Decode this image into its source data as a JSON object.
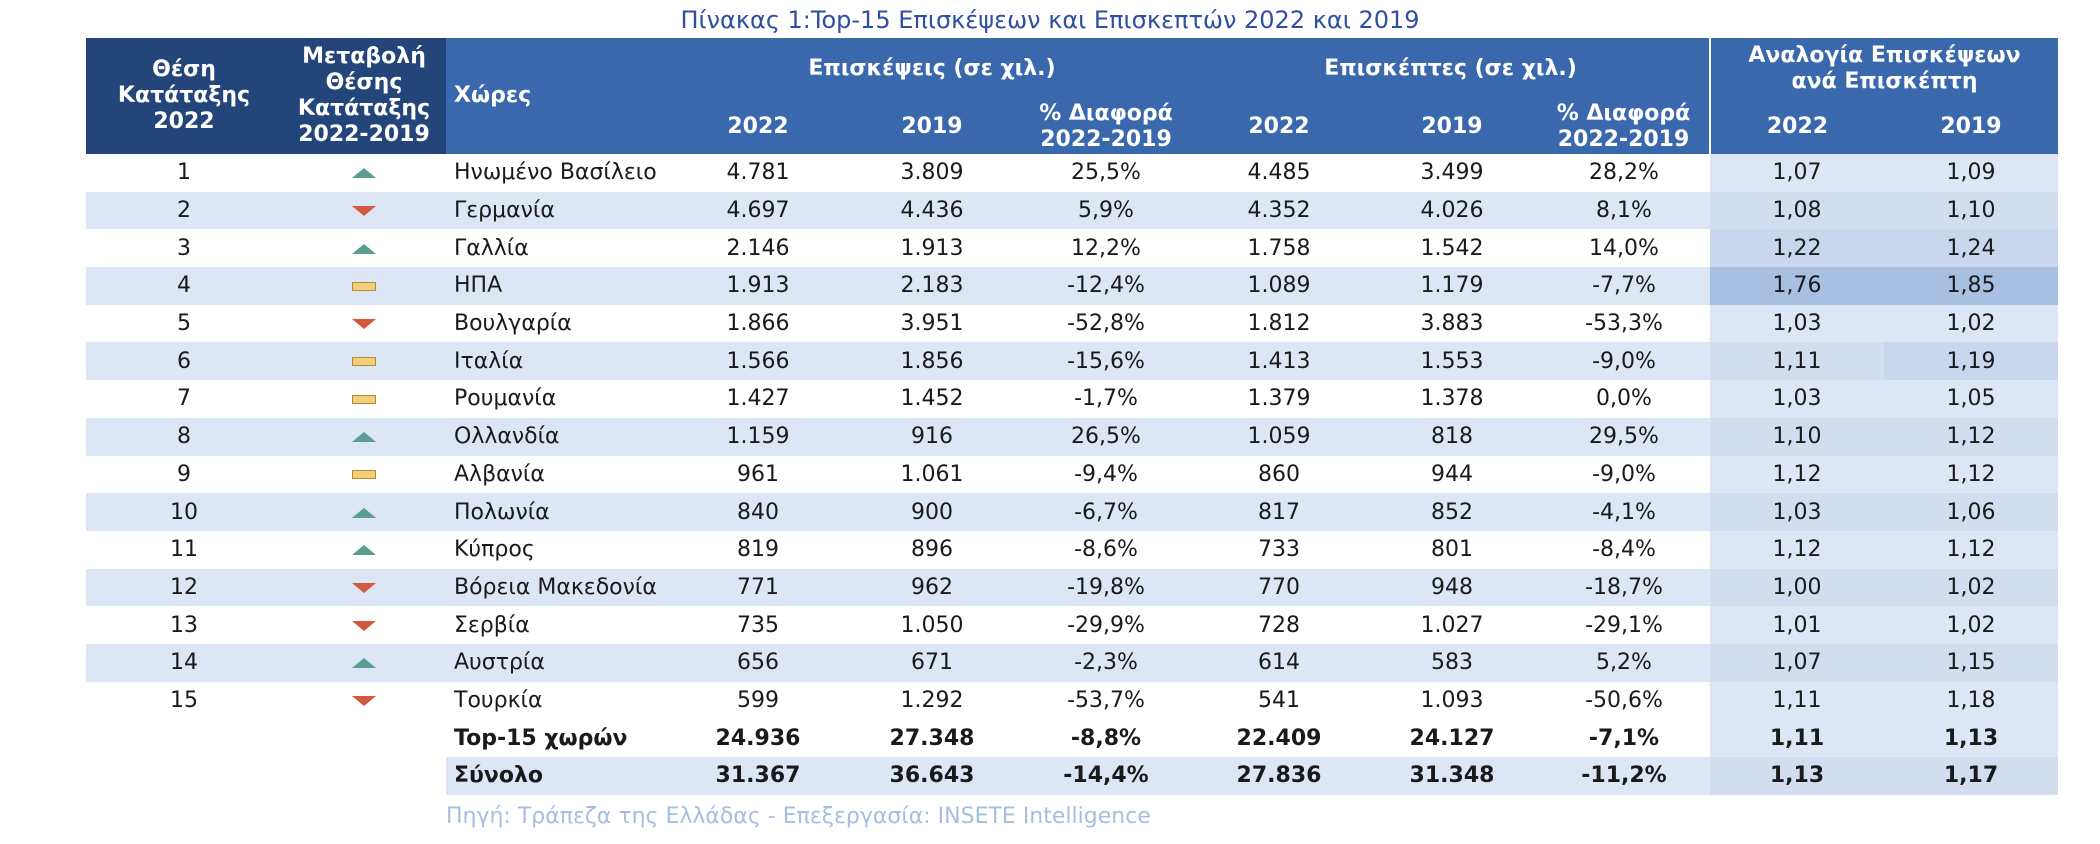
{
  "title": "Πίνακας 1:Top-15 Επισκέψεων και Επισκεπτών 2022 και 2019",
  "headers": {
    "rank": "Θέση Κατάταξης 2022",
    "change": "Μεταβολή Θέσης Κατάταξης 2022-2019",
    "countries": "Χώρες",
    "visits_group": "Επισκέψεις (σε χιλ.)",
    "visitors_group": "Επισκέπτες (σε χιλ.)",
    "ratio_group": "Αναλογία Επισκέψεων ανά Επισκέπτη",
    "y2022": "2022",
    "y2019": "2019",
    "diff": "% Διαφορά 2022-2019"
  },
  "rows": [
    {
      "rank": "1",
      "trend": "up",
      "country": "Ηνωμένο Βασίλειο",
      "v22": "4.781",
      "v19": "3.809",
      "vd": "25,5%",
      "e22": "4.485",
      "e19": "3.499",
      "ed": "28,2%",
      "r22": "1,07",
      "r19": "1,09"
    },
    {
      "rank": "2",
      "trend": "down",
      "country": "Γερμανία",
      "v22": "4.697",
      "v19": "4.436",
      "vd": "5,9%",
      "e22": "4.352",
      "e19": "4.026",
      "ed": "8,1%",
      "r22": "1,08",
      "r19": "1,10"
    },
    {
      "rank": "3",
      "trend": "up",
      "country": "Γαλλία",
      "v22": "2.146",
      "v19": "1.913",
      "vd": "12,2%",
      "e22": "1.758",
      "e19": "1.542",
      "ed": "14,0%",
      "r22": "1,22",
      "r19": "1,24"
    },
    {
      "rank": "4",
      "trend": "same",
      "country": "ΗΠΑ",
      "v22": "1.913",
      "v19": "2.183",
      "vd": "-12,4%",
      "e22": "1.089",
      "e19": "1.179",
      "ed": "-7,7%",
      "r22": "1,76",
      "r19": "1,85"
    },
    {
      "rank": "5",
      "trend": "down",
      "country": "Βουλγαρία",
      "v22": "1.866",
      "v19": "3.951",
      "vd": "-52,8%",
      "e22": "1.812",
      "e19": "3.883",
      "ed": "-53,3%",
      "r22": "1,03",
      "r19": "1,02"
    },
    {
      "rank": "6",
      "trend": "same",
      "country": "Ιταλία",
      "v22": "1.566",
      "v19": "1.856",
      "vd": "-15,6%",
      "e22": "1.413",
      "e19": "1.553",
      "ed": "-9,0%",
      "r22": "1,11",
      "r19": "1,19"
    },
    {
      "rank": "7",
      "trend": "same",
      "country": "Ρουμανία",
      "v22": "1.427",
      "v19": "1.452",
      "vd": "-1,7%",
      "e22": "1.379",
      "e19": "1.378",
      "ed": "0,0%",
      "r22": "1,03",
      "r19": "1,05"
    },
    {
      "rank": "8",
      "trend": "up",
      "country": "Ολλανδία",
      "v22": "1.159",
      "v19": "916",
      "vd": "26,5%",
      "e22": "1.059",
      "e19": "818",
      "ed": "29,5%",
      "r22": "1,10",
      "r19": "1,12"
    },
    {
      "rank": "9",
      "trend": "same",
      "country": "Αλβανία",
      "v22": "961",
      "v19": "1.061",
      "vd": "-9,4%",
      "e22": "860",
      "e19": "944",
      "ed": "-9,0%",
      "r22": "1,12",
      "r19": "1,12"
    },
    {
      "rank": "10",
      "trend": "up",
      "country": "Πολωνία",
      "v22": "840",
      "v19": "900",
      "vd": "-6,7%",
      "e22": "817",
      "e19": "852",
      "ed": "-4,1%",
      "r22": "1,03",
      "r19": "1,06"
    },
    {
      "rank": "11",
      "trend": "up",
      "country": "Κύπρος",
      "v22": "819",
      "v19": "896",
      "vd": "-8,6%",
      "e22": "733",
      "e19": "801",
      "ed": "-8,4%",
      "r22": "1,12",
      "r19": "1,12"
    },
    {
      "rank": "12",
      "trend": "down",
      "country": "Βόρεια Μακεδονία",
      "v22": "771",
      "v19": "962",
      "vd": "-19,8%",
      "e22": "770",
      "e19": "948",
      "ed": "-18,7%",
      "r22": "1,00",
      "r19": "1,02"
    },
    {
      "rank": "13",
      "trend": "down",
      "country": "Σερβία",
      "v22": "735",
      "v19": "1.050",
      "vd": "-29,9%",
      "e22": "728",
      "e19": "1.027",
      "ed": "-29,1%",
      "r22": "1,01",
      "r19": "1,02"
    },
    {
      "rank": "14",
      "trend": "up",
      "country": "Αυστρία",
      "v22": "656",
      "v19": "671",
      "vd": "-2,3%",
      "e22": "614",
      "e19": "583",
      "ed": "5,2%",
      "r22": "1,07",
      "r19": "1,15"
    },
    {
      "rank": "15",
      "trend": "down",
      "country": "Τουρκία",
      "v22": "599",
      "v19": "1.292",
      "vd": "-53,7%",
      "e22": "541",
      "e19": "1.093",
      "ed": "-50,6%",
      "r22": "1,11",
      "r19": "1,18"
    }
  ],
  "totals": [
    {
      "country": "Top-15 χωρών",
      "v22": "24.936",
      "v19": "27.348",
      "vd": "-8,8%",
      "e22": "22.409",
      "e19": "24.127",
      "ed": "-7,1%",
      "r22": "1,11",
      "r19": "1,13"
    },
    {
      "country": "Σύνολο",
      "v22": "31.367",
      "v19": "36.643",
      "vd": "-14,4%",
      "e22": "27.836",
      "e19": "31.348",
      "ed": "-11,2%",
      "r22": "1,13",
      "r19": "1,17"
    }
  ],
  "icons": {
    "up": "triangle-up-icon",
    "down": "triangle-down-icon",
    "same": "dash-icon"
  },
  "colors": {
    "header": "#3a68ad",
    "header_dark": "#24457a",
    "row_alt": "#dde6f4",
    "up": "#5a9e8f",
    "down": "#d2583e",
    "same": "#f2cf7a"
  },
  "source": "Πηγή: Τράπεζα της Ελλάδας - Επεξεργασία: INSETE Intelligence"
}
